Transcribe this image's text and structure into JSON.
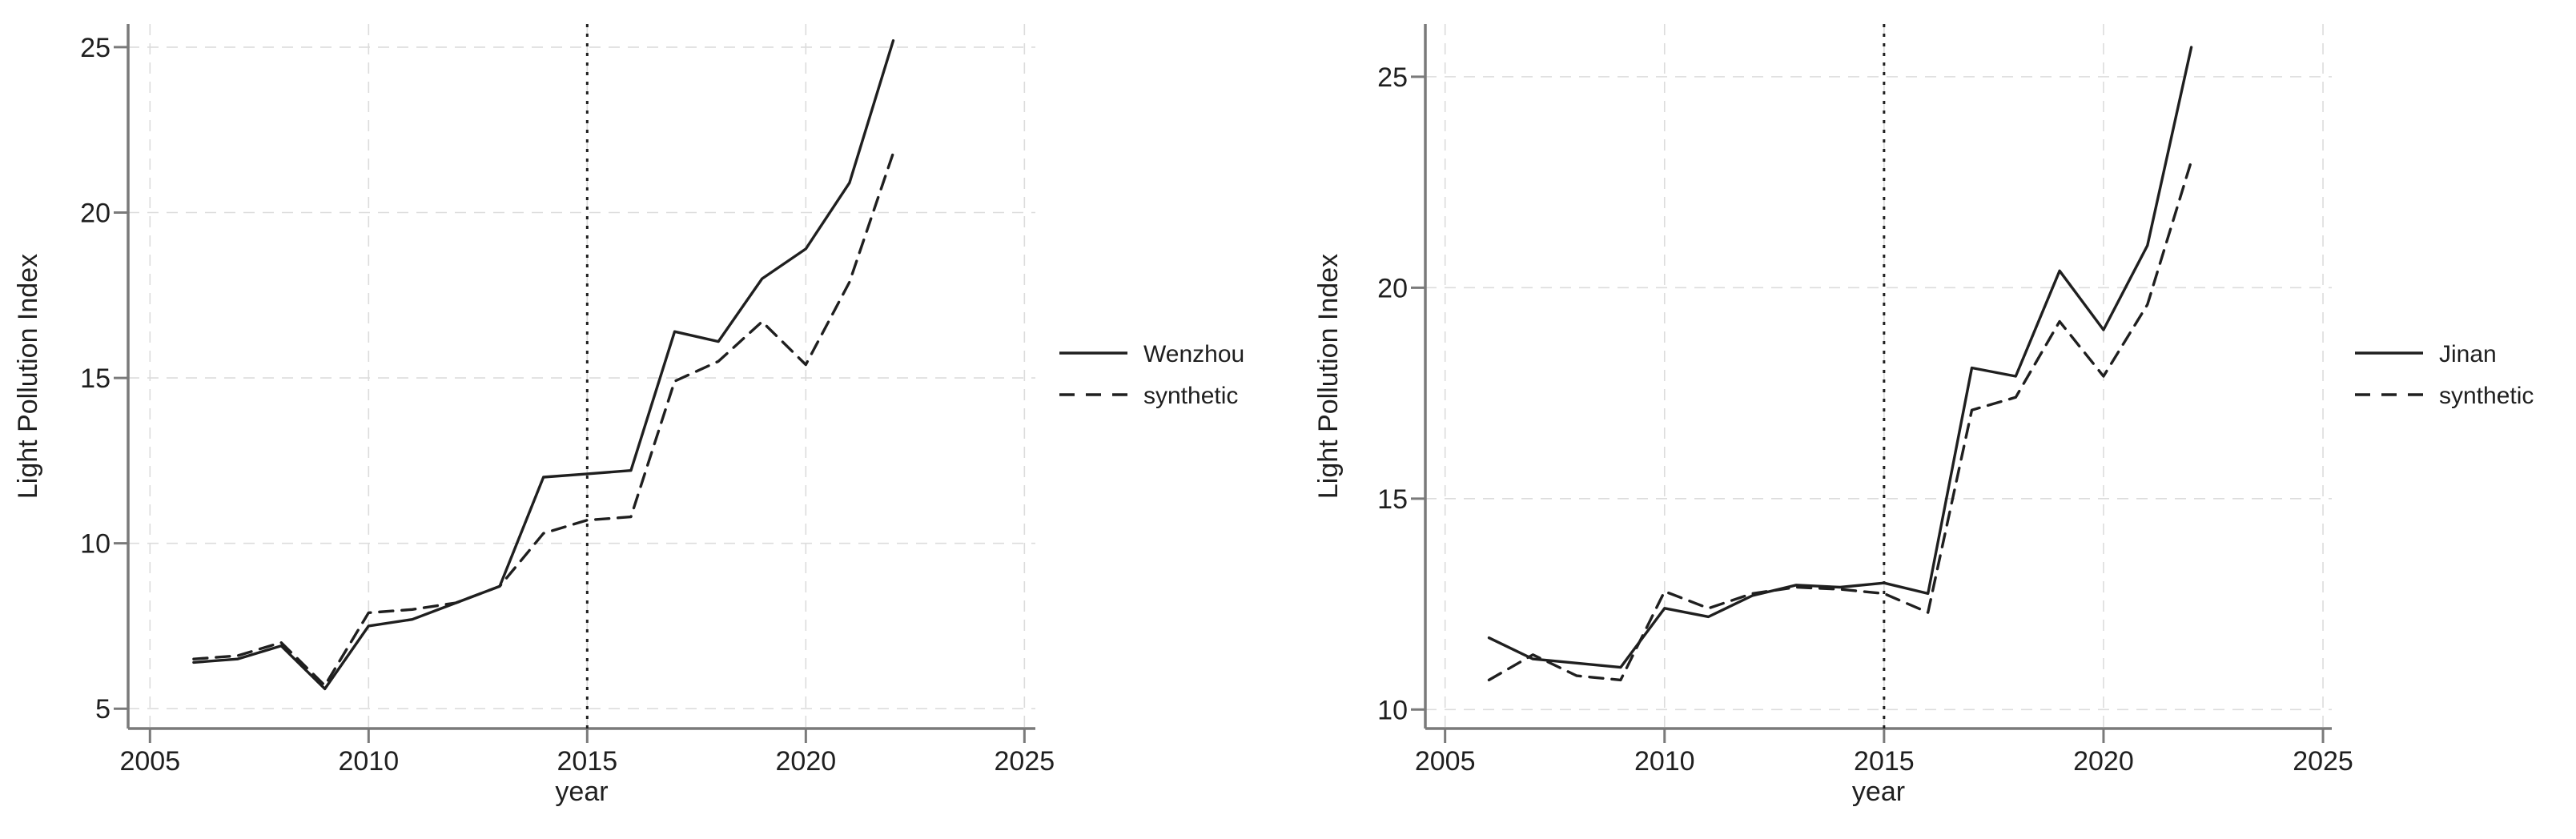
{
  "figure": {
    "background": "#ffffff",
    "series_color": "#1f1f1f",
    "grid_color": "#dcdcdc",
    "axis_color": "#7a7a7a",
    "text_color": "#1f1f1f"
  },
  "chart_data": [
    {
      "type": "line",
      "title": "",
      "xlabel": "year",
      "ylabel": "Light Pollution Index",
      "x": [
        2006,
        2007,
        2008,
        2009,
        2010,
        2011,
        2012,
        2013,
        2014,
        2015,
        2016,
        2017,
        2018,
        2019,
        2020,
        2021,
        2022
      ],
      "series": [
        {
          "name": "Wenzhou",
          "style": "solid",
          "values": [
            6.4,
            6.5,
            6.9,
            5.6,
            7.5,
            7.7,
            8.2,
            8.7,
            12.0,
            12.1,
            12.2,
            16.4,
            16.1,
            18.0,
            18.9,
            20.9,
            25.2
          ]
        },
        {
          "name": "synthetic",
          "style": "dashed",
          "values": [
            6.5,
            6.6,
            7.0,
            5.7,
            7.9,
            8.0,
            8.2,
            8.7,
            10.3,
            10.7,
            10.8,
            14.9,
            15.5,
            16.7,
            15.4,
            17.9,
            21.8
          ]
        }
      ],
      "x_ticks": [
        2005,
        2010,
        2015,
        2020,
        2025
      ],
      "y_ticks": [
        5,
        10,
        15,
        20,
        25
      ],
      "xlim": [
        2004.5,
        2025.25
      ],
      "ylim": [
        4.4,
        25.7
      ],
      "treatment_line_x": 2015,
      "grid": true,
      "legend_position": "right",
      "legend": [
        "Wenzhou",
        "synthetic"
      ]
    },
    {
      "type": "line",
      "title": "",
      "xlabel": "year",
      "ylabel": "Light Pollution Index",
      "x": [
        2006,
        2007,
        2008,
        2009,
        2010,
        2011,
        2012,
        2013,
        2014,
        2015,
        2016,
        2017,
        2018,
        2019,
        2020,
        2021,
        2022
      ],
      "series": [
        {
          "name": "Jinan",
          "style": "solid",
          "values": [
            11.7,
            11.2,
            11.1,
            11.0,
            12.4,
            12.2,
            12.7,
            12.95,
            12.9,
            13.0,
            12.75,
            18.1,
            17.9,
            20.4,
            19.0,
            21.0,
            25.7
          ]
        },
        {
          "name": "synthetic",
          "style": "dashed",
          "values": [
            10.7,
            11.3,
            10.8,
            10.7,
            12.8,
            12.4,
            12.75,
            12.9,
            12.85,
            12.75,
            12.3,
            17.1,
            17.4,
            19.2,
            17.9,
            19.6,
            23.0
          ]
        }
      ],
      "x_ticks": [
        2005,
        2010,
        2015,
        2020,
        2025
      ],
      "y_ticks": [
        10,
        15,
        20,
        25
      ],
      "xlim": [
        2004.55,
        2025.2
      ],
      "ylim": [
        9.55,
        26.25
      ],
      "treatment_line_x": 2015,
      "grid": true,
      "legend_position": "right",
      "legend": [
        "Jinan",
        "synthetic"
      ]
    }
  ]
}
